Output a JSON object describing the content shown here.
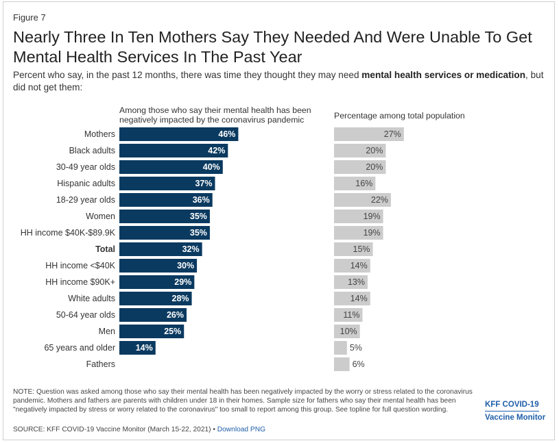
{
  "figure_label": "Figure 7",
  "title": "Nearly Three In Ten Mothers Say They Needed And Were Unable To Get Mental Health Services In The Past Year",
  "subtitle_pre": "Percent who say, in the past 12 months, there was time they thought they may need ",
  "subtitle_bold": "mental health services or medication",
  "subtitle_post": ", but did not get them:",
  "colors": {
    "navy": "#0b3a60",
    "gray": "#cccccc"
  },
  "chart_data": {
    "type": "bar",
    "orientation": "horizontal",
    "categories": [
      "Mothers",
      "Black adults",
      "30-49 year olds",
      "Hispanic adults",
      "18-29 year olds",
      "Women",
      "HH income $40K-$89.9K",
      "Total",
      "HH income <$40K",
      "HH income $90K+",
      "White adults",
      "50-64 year olds",
      "Men",
      "65 years and older",
      "Fathers"
    ],
    "bold_category": "Total",
    "series": [
      {
        "name": "Among those who say their mental health has been negatively impacted by the coronavirus pandemic",
        "values": [
          46,
          42,
          40,
          37,
          36,
          35,
          35,
          32,
          30,
          29,
          28,
          26,
          25,
          14,
          null
        ],
        "labels": [
          "46%",
          "42%",
          "40%",
          "37%",
          "36%",
          "35%",
          "35%",
          "32%",
          "30%",
          "29%",
          "28%",
          "26%",
          "25%",
          "14%",
          ""
        ]
      },
      {
        "name": "Percentage among total population",
        "values": [
          27,
          20,
          20,
          16,
          22,
          19,
          19,
          15,
          14,
          13,
          14,
          11,
          10,
          5,
          6
        ],
        "labels": [
          "27%",
          "20%",
          "20%",
          "16%",
          "22%",
          "19%",
          "19%",
          "15%",
          "14%",
          "13%",
          "14%",
          "11%",
          "10%",
          "5%",
          "6%"
        ]
      }
    ]
  },
  "note": "NOTE: Question was asked among those who say their mental health has been negatively impacted by the worry or stress related to the coronavirus pandemic. Mothers and fathers are parents with children under 18 in their homes. Sample size for fathers who say their mental health has been \"negatively impacted by stress or worry related to the coronavirus\" too small to report among this group. See topline for full question wording.",
  "source": "SOURCE: KFF COVID-19 Vaccine Monitor (March 15-22, 2021) • ",
  "download": "Download PNG",
  "brand": {
    "line1": "KFF COVID-19",
    "line2": "Vaccine Monitor"
  }
}
